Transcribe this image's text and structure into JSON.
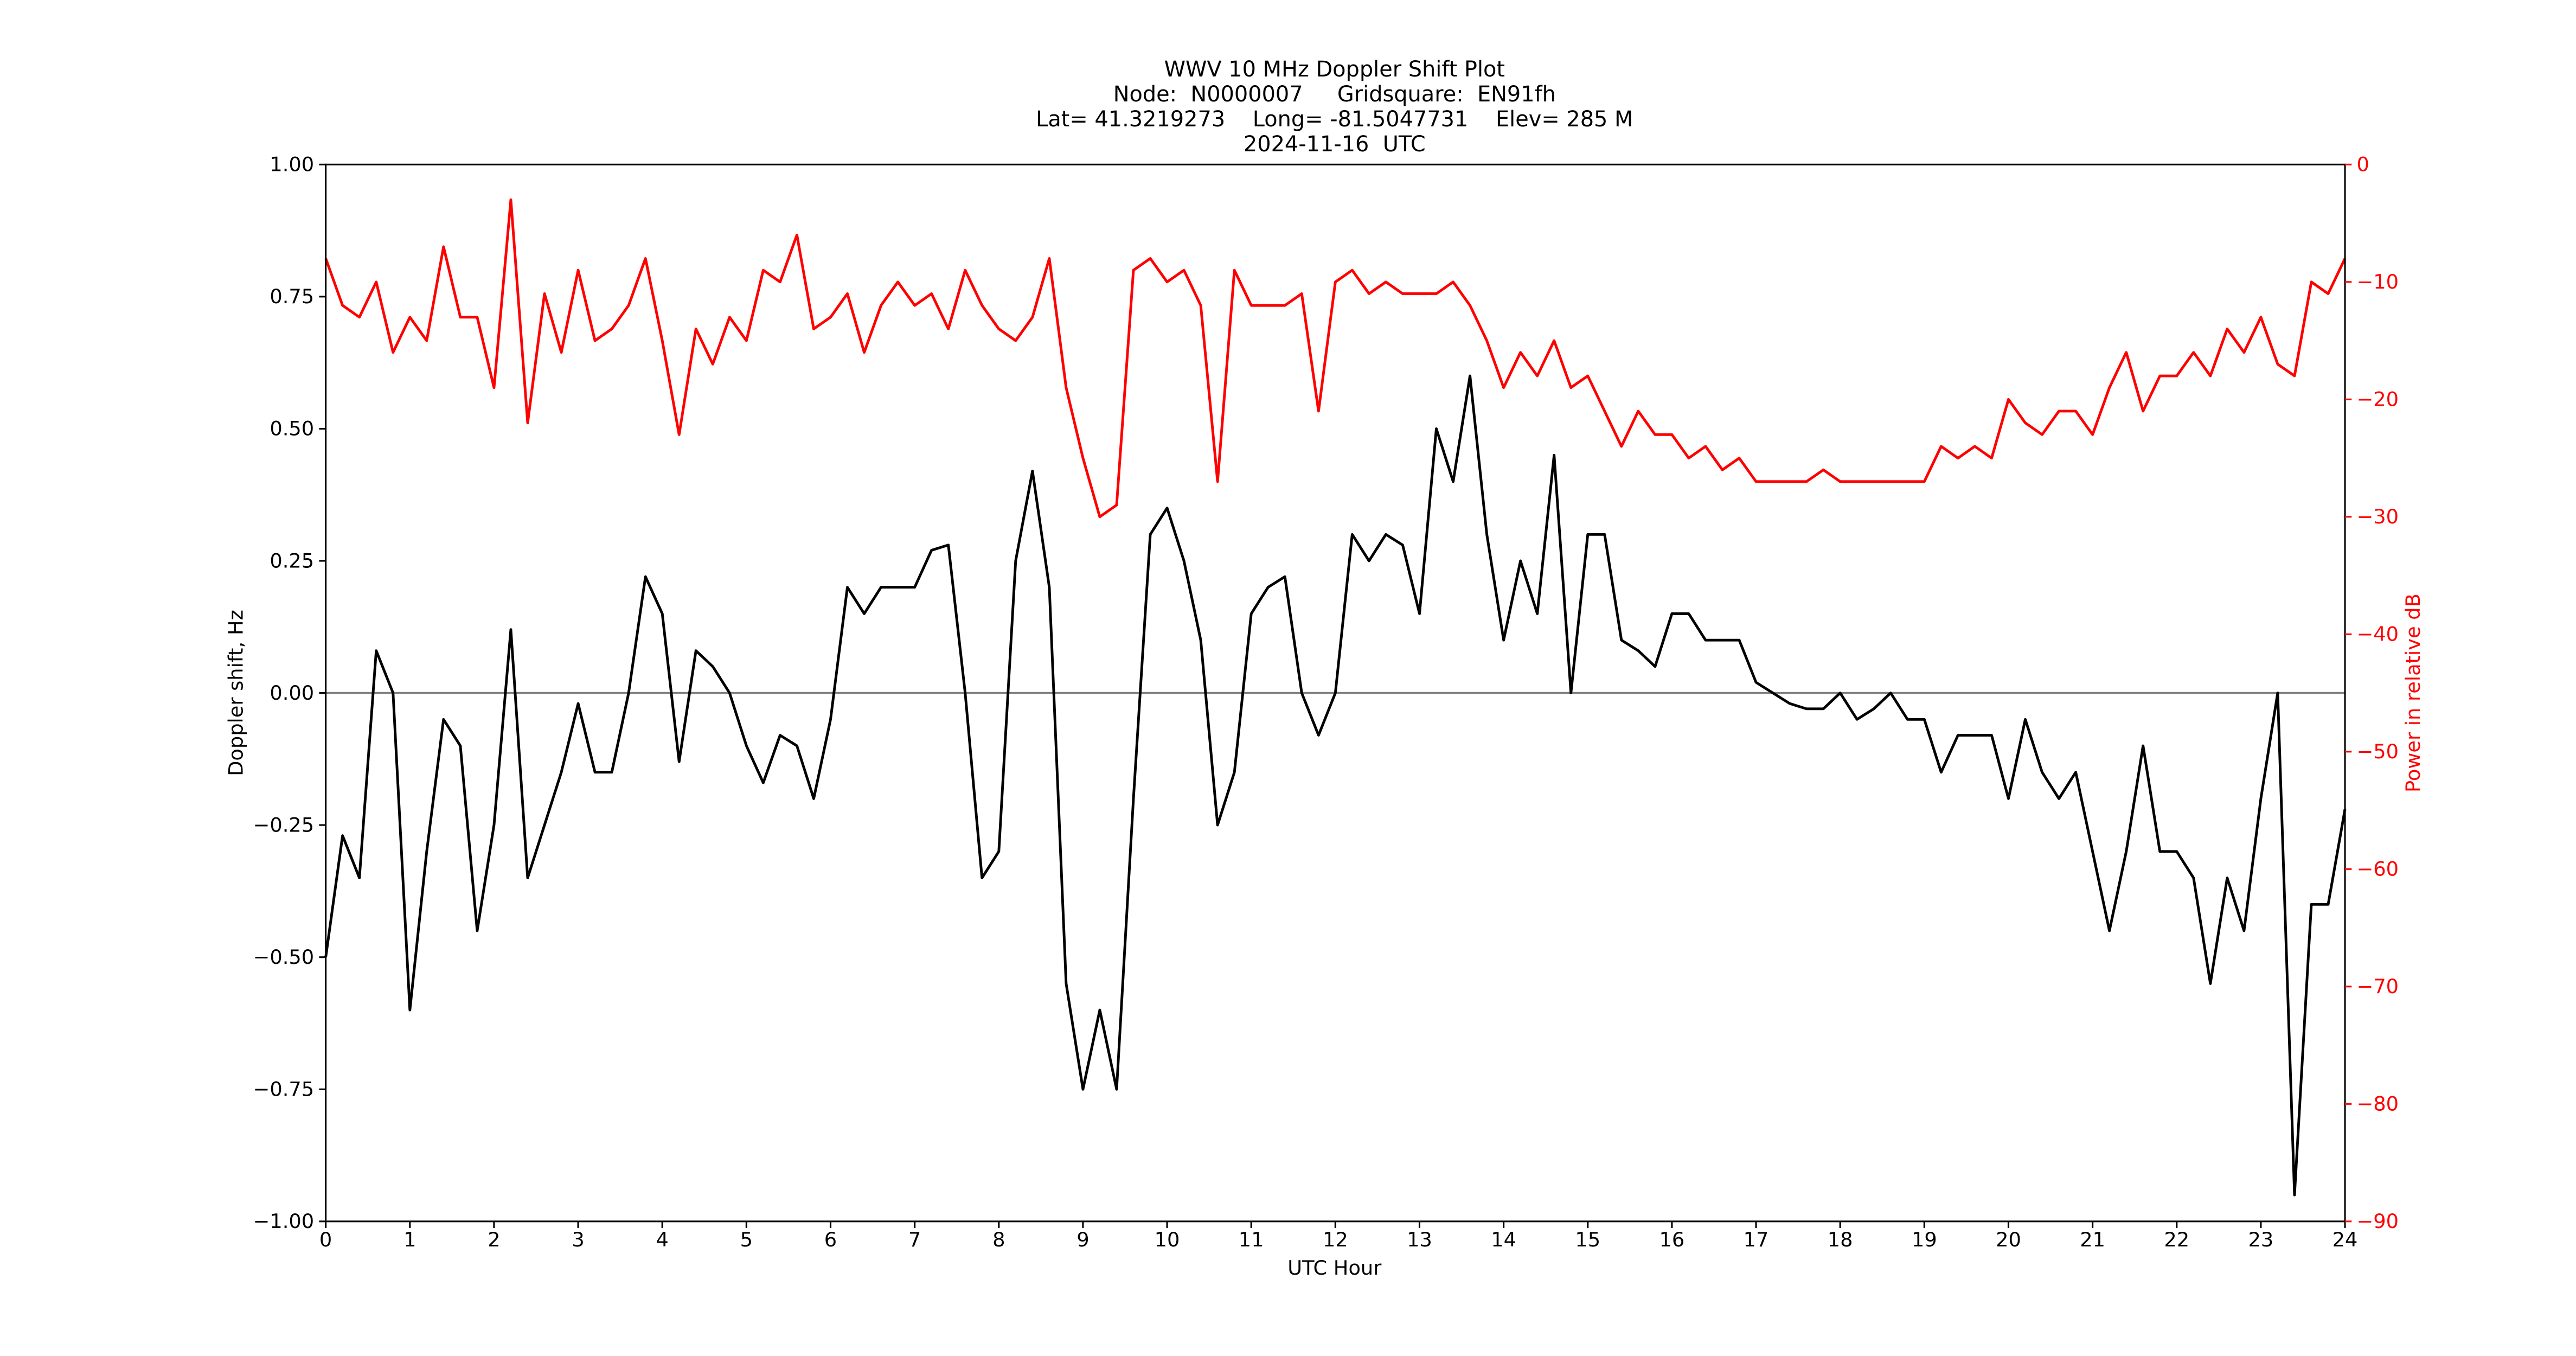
{
  "chart_data": {
    "type": "line",
    "title_lines": [
      "WWV 10 MHz Doppler Shift Plot",
      "Node:  N0000007     Gridsquare:  EN91fh",
      "Lat= 41.3219273    Long= -81.5047731    Elev= 285 M",
      "2024-11-16  UTC"
    ],
    "x_label": "UTC Hour",
    "y_label": "Doppler shift, Hz",
    "y2_label": "Power in relative dB",
    "y2_color": "#ff0000",
    "x": [
      0,
      0.2,
      0.4,
      0.6,
      0.8,
      1,
      1.2,
      1.4,
      1.6,
      1.8,
      2,
      2.2,
      2.4,
      2.6,
      2.8,
      3,
      3.2,
      3.4,
      3.6,
      3.8,
      4,
      4.2,
      4.4,
      4.6,
      4.8,
      5,
      5.2,
      5.4,
      5.6,
      5.8,
      6,
      6.2,
      6.4,
      6.6,
      6.8,
      7,
      7.2,
      7.4,
      7.6,
      7.8,
      8,
      8.2,
      8.4,
      8.6,
      8.8,
      9,
      9.2,
      9.4,
      9.6,
      9.8,
      10,
      10.2,
      10.4,
      10.6,
      10.8,
      11,
      11.2,
      11.4,
      11.6,
      11.8,
      12,
      12.2,
      12.4,
      12.6,
      12.8,
      13,
      13.2,
      13.4,
      13.6,
      13.8,
      14,
      14.2,
      14.4,
      14.6,
      14.8,
      15,
      15.2,
      15.4,
      15.6,
      15.8,
      16,
      16.2,
      16.4,
      16.6,
      16.8,
      17,
      17.2,
      17.4,
      17.6,
      17.8,
      18,
      18.2,
      18.4,
      18.6,
      18.8,
      19,
      19.2,
      19.4,
      19.6,
      19.8,
      20,
      20.2,
      20.4,
      20.6,
      20.8,
      21,
      21.2,
      21.4,
      21.6,
      21.8,
      22,
      22.2,
      22.4,
      22.6,
      22.8,
      23,
      23.2,
      23.4,
      23.6,
      23.8,
      24
    ],
    "series": [
      {
        "color": "#000000",
        "values": [
          -0.5,
          -0.27,
          -0.35,
          0.08,
          0.0,
          -0.6,
          -0.3,
          -0.05,
          -0.1,
          -0.45,
          -0.25,
          0.12,
          -0.35,
          -0.25,
          -0.15,
          -0.02,
          -0.15,
          -0.15,
          0.0,
          0.22,
          0.15,
          -0.13,
          0.08,
          0.05,
          0.0,
          -0.1,
          -0.17,
          -0.08,
          -0.1,
          -0.2,
          -0.05,
          0.2,
          0.15,
          0.2,
          0.2,
          0.2,
          0.27,
          0.28,
          0.0,
          -0.35,
          -0.3,
          0.25,
          0.42,
          0.2,
          -0.55,
          -0.75,
          -0.6,
          -0.75,
          -0.2,
          0.3,
          0.35,
          0.25,
          0.1,
          -0.25,
          -0.15,
          0.15,
          0.2,
          0.22,
          0.0,
          -0.08,
          0.0,
          0.3,
          0.25,
          0.3,
          0.28,
          0.15,
          0.5,
          0.4,
          0.6,
          0.3,
          0.1,
          0.25,
          0.15,
          0.45,
          0.0,
          0.3,
          0.3,
          0.1,
          0.08,
          0.05,
          0.15,
          0.15,
          0.1,
          0.1,
          0.1,
          0.02,
          0.0,
          -0.02,
          -0.03,
          -0.03,
          0.0,
          -0.05,
          -0.03,
          0.0,
          -0.05,
          -0.05,
          -0.15,
          -0.08,
          -0.08,
          -0.08,
          -0.2,
          -0.05,
          -0.15,
          -0.2,
          -0.15,
          -0.3,
          -0.45,
          -0.3,
          -0.1,
          -0.3,
          -0.3,
          -0.35,
          -0.55,
          -0.35,
          -0.45,
          -0.2,
          0.0,
          -0.95,
          -0.4,
          -0.4,
          -0.22
        ]
      },
      {
        "color": "#ff0000",
        "axis": "y2",
        "values": [
          -8,
          -12,
          -13,
          -10,
          -16,
          -13,
          -15,
          -7,
          -13,
          -13,
          -19,
          -3,
          -22,
          -11,
          -16,
          -9,
          -15,
          -14,
          -12,
          -8,
          -15,
          -23,
          -14,
          -17,
          -13,
          -15,
          -9,
          -10,
          -6,
          -14,
          -13,
          -11,
          -16,
          -12,
          -10,
          -12,
          -11,
          -14,
          -9,
          -12,
          -14,
          -15,
          -13,
          -8,
          -19,
          -25,
          -30,
          -29,
          -9,
          -8,
          -10,
          -9,
          -12,
          -27,
          -9,
          -12,
          -12,
          -12,
          -11,
          -21,
          -10,
          -9,
          -11,
          -10,
          -11,
          -11,
          -11,
          -10,
          -12,
          -15,
          -19,
          -16,
          -18,
          -15,
          -19,
          -18,
          -21,
          -24,
          -21,
          -23,
          -23,
          -25,
          -24,
          -26,
          -25,
          -27,
          -27,
          -27,
          -27,
          -26,
          -27,
          -27,
          -27,
          -27,
          -27,
          -27,
          -24,
          -25,
          -24,
          -25,
          -20,
          -22,
          -23,
          -21,
          -21,
          -23,
          -19,
          -16,
          -21,
          -18,
          -18,
          -16,
          -18,
          -14,
          -16,
          -13,
          -17,
          -18,
          -10,
          -11,
          -8
        ]
      }
    ],
    "reference_line": {
      "y": 0,
      "color": "#808080"
    },
    "xlim": [
      0,
      24
    ],
    "xticks": [
      0,
      1,
      2,
      3,
      4,
      5,
      6,
      7,
      8,
      9,
      10,
      11,
      12,
      13,
      14,
      15,
      16,
      17,
      18,
      19,
      20,
      21,
      22,
      23,
      24
    ],
    "ylim": [
      -1,
      1
    ],
    "yticks": [
      {
        "value": -1,
        "label": "−1.00"
      },
      {
        "value": -0.75,
        "label": "−0.75"
      },
      {
        "value": -0.5,
        "label": "−0.50"
      },
      {
        "value": -0.25,
        "label": "−0.25"
      },
      {
        "value": 0,
        "label": "0.00"
      },
      {
        "value": 0.25,
        "label": "0.25"
      },
      {
        "value": 0.5,
        "label": "0.50"
      },
      {
        "value": 0.75,
        "label": "0.75"
      },
      {
        "value": 1,
        "label": "1.00"
      }
    ],
    "y2lim": [
      -90,
      0
    ],
    "y2ticks": [
      0,
      {
        "value": -10,
        "label": "−10"
      },
      {
        "value": -20,
        "label": "−20"
      },
      {
        "value": -30,
        "label": "−30"
      },
      {
        "value": -40,
        "label": "−40"
      },
      {
        "value": -50,
        "label": "−50"
      },
      {
        "value": -60,
        "label": "−60"
      },
      {
        "value": -70,
        "label": "−70"
      },
      {
        "value": -80,
        "label": "−80"
      },
      {
        "value": -90,
        "label": "−90"
      }
    ]
  }
}
